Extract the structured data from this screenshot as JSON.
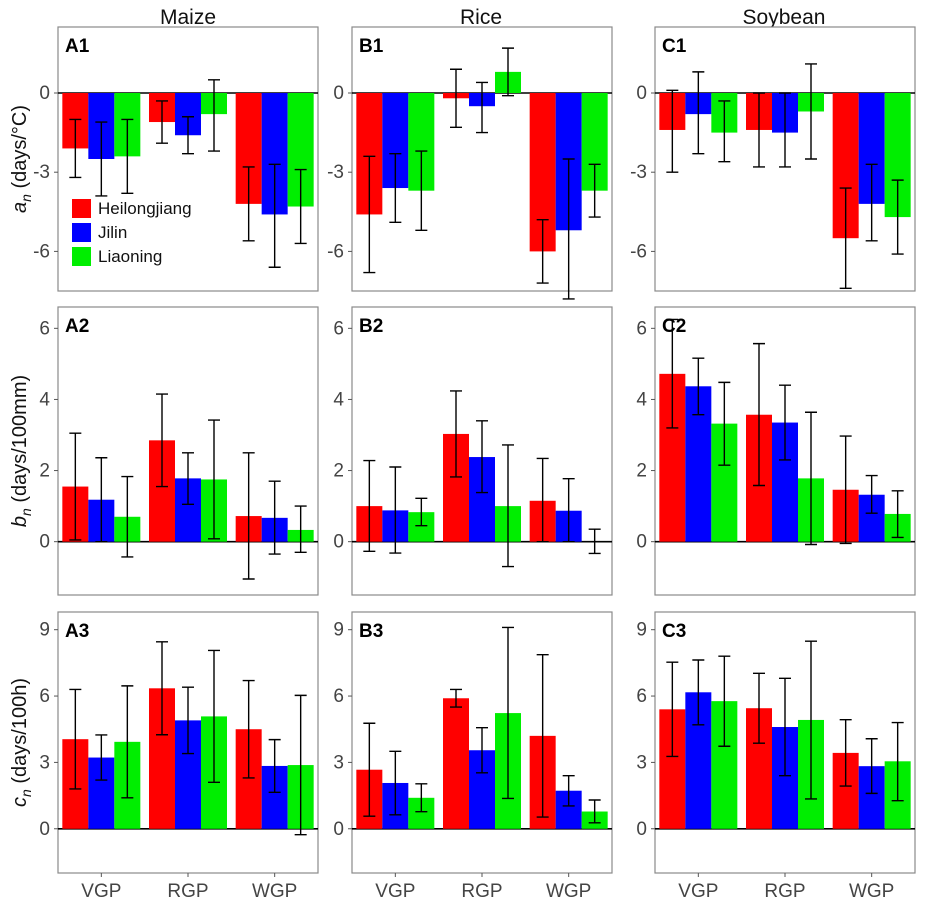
{
  "chart_data": {
    "type": "bar",
    "columns": [
      "Maize",
      "Rice",
      "Soybean"
    ],
    "categories": [
      "VGP",
      "RGP",
      "WGP"
    ],
    "legend": {
      "entries": [
        "Heilongjiang",
        "Jilin",
        "Liaoning"
      ],
      "colors": [
        "#ff0000",
        "#0000ff",
        "#00ee00"
      ],
      "placement": "inside A1 panel, lower-left"
    },
    "rows": [
      {
        "ylabel_main": "a",
        "ylabel_sub": "n",
        "ylabel_unit": " (days/°C)",
        "ylim": [
          -7.5,
          2.5
        ],
        "ticks": [
          0,
          -3,
          -6
        ],
        "tick_labels": [
          "0",
          "-3",
          "-6"
        ],
        "panels": [
          {
            "tag": "A1",
            "series": [
              {
                "name": "Heilongjiang",
                "values": [
                  -2.1,
                  -1.1,
                  -4.2
                ],
                "err_low": [
                  -3.2,
                  -1.9,
                  -5.6
                ],
                "err_high": [
                  -1.0,
                  -0.3,
                  -2.8
                ]
              },
              {
                "name": "Jilin",
                "values": [
                  -2.5,
                  -1.6,
                  -4.6
                ],
                "err_low": [
                  -3.9,
                  -2.3,
                  -6.6
                ],
                "err_high": [
                  -1.1,
                  -0.9,
                  -2.7
                ]
              },
              {
                "name": "Liaoning",
                "values": [
                  -2.4,
                  -0.8,
                  -4.3
                ],
                "err_low": [
                  -3.8,
                  -2.2,
                  -5.7
                ],
                "err_high": [
                  -1.0,
                  0.5,
                  -2.9
                ]
              }
            ]
          },
          {
            "tag": "B1",
            "series": [
              {
                "name": "Heilongjiang",
                "values": [
                  -4.6,
                  -0.2,
                  -6.0
                ],
                "err_low": [
                  -6.8,
                  -1.3,
                  -7.2
                ],
                "err_high": [
                  -2.4,
                  0.9,
                  -4.8
                ]
              },
              {
                "name": "Jilin",
                "values": [
                  -3.6,
                  -0.5,
                  -5.2
                ],
                "err_low": [
                  -4.9,
                  -1.5,
                  -7.8
                ],
                "err_high": [
                  -2.3,
                  0.4,
                  -2.5
                ]
              },
              {
                "name": "Liaoning",
                "values": [
                  -3.7,
                  0.8,
                  -3.7
                ],
                "err_low": [
                  -5.2,
                  -0.1,
                  -4.7
                ],
                "err_high": [
                  -2.2,
                  1.7,
                  -2.7
                ]
              }
            ]
          },
          {
            "tag": "C1",
            "series": [
              {
                "name": "Heilongjiang",
                "values": [
                  -1.4,
                  -1.4,
                  -5.5
                ],
                "err_low": [
                  -3.0,
                  -2.8,
                  -7.4
                ],
                "err_high": [
                  0.1,
                  0.0,
                  -3.6
                ]
              },
              {
                "name": "Jilin",
                "values": [
                  -0.8,
                  -1.5,
                  -4.2
                ],
                "err_low": [
                  -2.3,
                  -2.8,
                  -5.6
                ],
                "err_high": [
                  0.8,
                  0.0,
                  -2.7
                ]
              },
              {
                "name": "Liaoning",
                "values": [
                  -1.5,
                  -0.7,
                  -4.7
                ],
                "err_low": [
                  -2.6,
                  -2.5,
                  -6.1
                ],
                "err_high": [
                  -0.3,
                  1.1,
                  -3.3
                ]
              }
            ]
          }
        ]
      },
      {
        "ylabel_main": "b",
        "ylabel_sub": "n",
        "ylabel_unit": " (days/100mm)",
        "ylim": [
          -1.5,
          6.6
        ],
        "ticks": [
          0,
          2,
          4,
          6
        ],
        "tick_labels": [
          "0",
          "2",
          "4",
          "6"
        ],
        "panels": [
          {
            "tag": "A2",
            "series": [
              {
                "name": "Heilongjiang",
                "values": [
                  1.55,
                  2.85,
                  0.72
                ],
                "err_low": [
                  0.05,
                  1.55,
                  -1.05
                ],
                "err_high": [
                  3.05,
                  4.15,
                  2.5
                ]
              },
              {
                "name": "Jilin",
                "values": [
                  1.18,
                  1.78,
                  0.67
                ],
                "err_low": [
                  0.0,
                  1.05,
                  -0.35
                ],
                "err_high": [
                  2.36,
                  2.5,
                  1.7
                ]
              },
              {
                "name": "Liaoning",
                "values": [
                  0.7,
                  1.75,
                  0.33
                ],
                "err_low": [
                  -0.43,
                  0.08,
                  -0.3
                ],
                "err_high": [
                  1.83,
                  3.42,
                  1.0
                ]
              }
            ]
          },
          {
            "tag": "B2",
            "series": [
              {
                "name": "Heilongjiang",
                "values": [
                  1.0,
                  3.03,
                  1.15
                ],
                "err_low": [
                  -0.27,
                  1.82,
                  0.0
                ],
                "err_high": [
                  2.28,
                  4.24,
                  2.34
                ]
              },
              {
                "name": "Jilin",
                "values": [
                  0.88,
                  2.38,
                  0.87
                ],
                "err_low": [
                  -0.32,
                  1.38,
                  0.0
                ],
                "err_high": [
                  2.1,
                  3.4,
                  1.77
                ]
              },
              {
                "name": "Liaoning",
                "values": [
                  0.83,
                  1.0,
                  0.0
                ],
                "err_low": [
                  0.45,
                  -0.7,
                  -0.33
                ],
                "err_high": [
                  1.22,
                  2.72,
                  0.35
                ]
              }
            ]
          },
          {
            "tag": "C2",
            "series": [
              {
                "name": "Heilongjiang",
                "values": [
                  4.72,
                  3.57,
                  1.46
                ],
                "err_low": [
                  3.2,
                  1.58,
                  -0.05
                ],
                "err_high": [
                  6.25,
                  5.57,
                  2.97
                ]
              },
              {
                "name": "Jilin",
                "values": [
                  4.37,
                  3.35,
                  1.32
                ],
                "err_low": [
                  3.57,
                  2.3,
                  0.8
                ],
                "err_high": [
                  5.16,
                  4.4,
                  1.86
                ]
              },
              {
                "name": "Liaoning",
                "values": [
                  3.32,
                  1.78,
                  0.78
                ],
                "err_low": [
                  2.15,
                  -0.08,
                  0.12
                ],
                "err_high": [
                  4.48,
                  3.64,
                  1.43
                ]
              }
            ]
          }
        ]
      },
      {
        "ylabel_main": "c",
        "ylabel_sub": "n",
        "ylabel_unit": " (days/100h)",
        "ylim": [
          -2.0,
          9.8
        ],
        "ticks": [
          0,
          3,
          6,
          9
        ],
        "tick_labels": [
          "0",
          "3",
          "6",
          "9"
        ],
        "panels": [
          {
            "tag": "A3",
            "series": [
              {
                "name": "Heilongjiang",
                "values": [
                  4.05,
                  6.35,
                  4.5
                ],
                "err_low": [
                  1.8,
                  4.25,
                  2.3
                ],
                "err_high": [
                  6.3,
                  8.45,
                  6.7
                ]
              },
              {
                "name": "Jilin",
                "values": [
                  3.22,
                  4.9,
                  2.84
                ],
                "err_low": [
                  2.2,
                  3.4,
                  1.65
                ],
                "err_high": [
                  4.24,
                  6.4,
                  4.03
                ]
              },
              {
                "name": "Liaoning",
                "values": [
                  3.93,
                  5.08,
                  2.88
                ],
                "err_low": [
                  1.4,
                  2.1,
                  -0.27
                ],
                "err_high": [
                  6.46,
                  8.06,
                  6.03
                ]
              }
            ]
          },
          {
            "tag": "B3",
            "series": [
              {
                "name": "Heilongjiang",
                "values": [
                  2.67,
                  5.9,
                  4.2
                ],
                "err_low": [
                  0.57,
                  5.5,
                  0.53
                ],
                "err_high": [
                  4.77,
                  6.3,
                  7.87
                ]
              },
              {
                "name": "Jilin",
                "values": [
                  2.07,
                  3.55,
                  1.72
                ],
                "err_low": [
                  0.63,
                  2.53,
                  1.03
                ],
                "err_high": [
                  3.5,
                  4.57,
                  2.4
                ]
              },
              {
                "name": "Liaoning",
                "values": [
                  1.4,
                  5.23,
                  0.78
                ],
                "err_low": [
                  0.77,
                  1.37,
                  0.27
                ],
                "err_high": [
                  2.03,
                  9.1,
                  1.3
                ]
              }
            ]
          },
          {
            "tag": "C3",
            "series": [
              {
                "name": "Heilongjiang",
                "values": [
                  5.4,
                  5.45,
                  3.43
                ],
                "err_low": [
                  3.27,
                  3.87,
                  1.93
                ],
                "err_high": [
                  7.53,
                  7.03,
                  4.93
                ]
              },
              {
                "name": "Jilin",
                "values": [
                  6.17,
                  4.6,
                  2.83
                ],
                "err_low": [
                  4.7,
                  2.4,
                  1.6
                ],
                "err_high": [
                  7.63,
                  6.8,
                  4.07
                ]
              },
              {
                "name": "Liaoning",
                "values": [
                  5.77,
                  4.92,
                  3.05
                ],
                "err_low": [
                  3.73,
                  1.35,
                  1.27
                ],
                "err_high": [
                  7.8,
                  8.48,
                  4.8
                ]
              }
            ]
          }
        ]
      }
    ]
  }
}
